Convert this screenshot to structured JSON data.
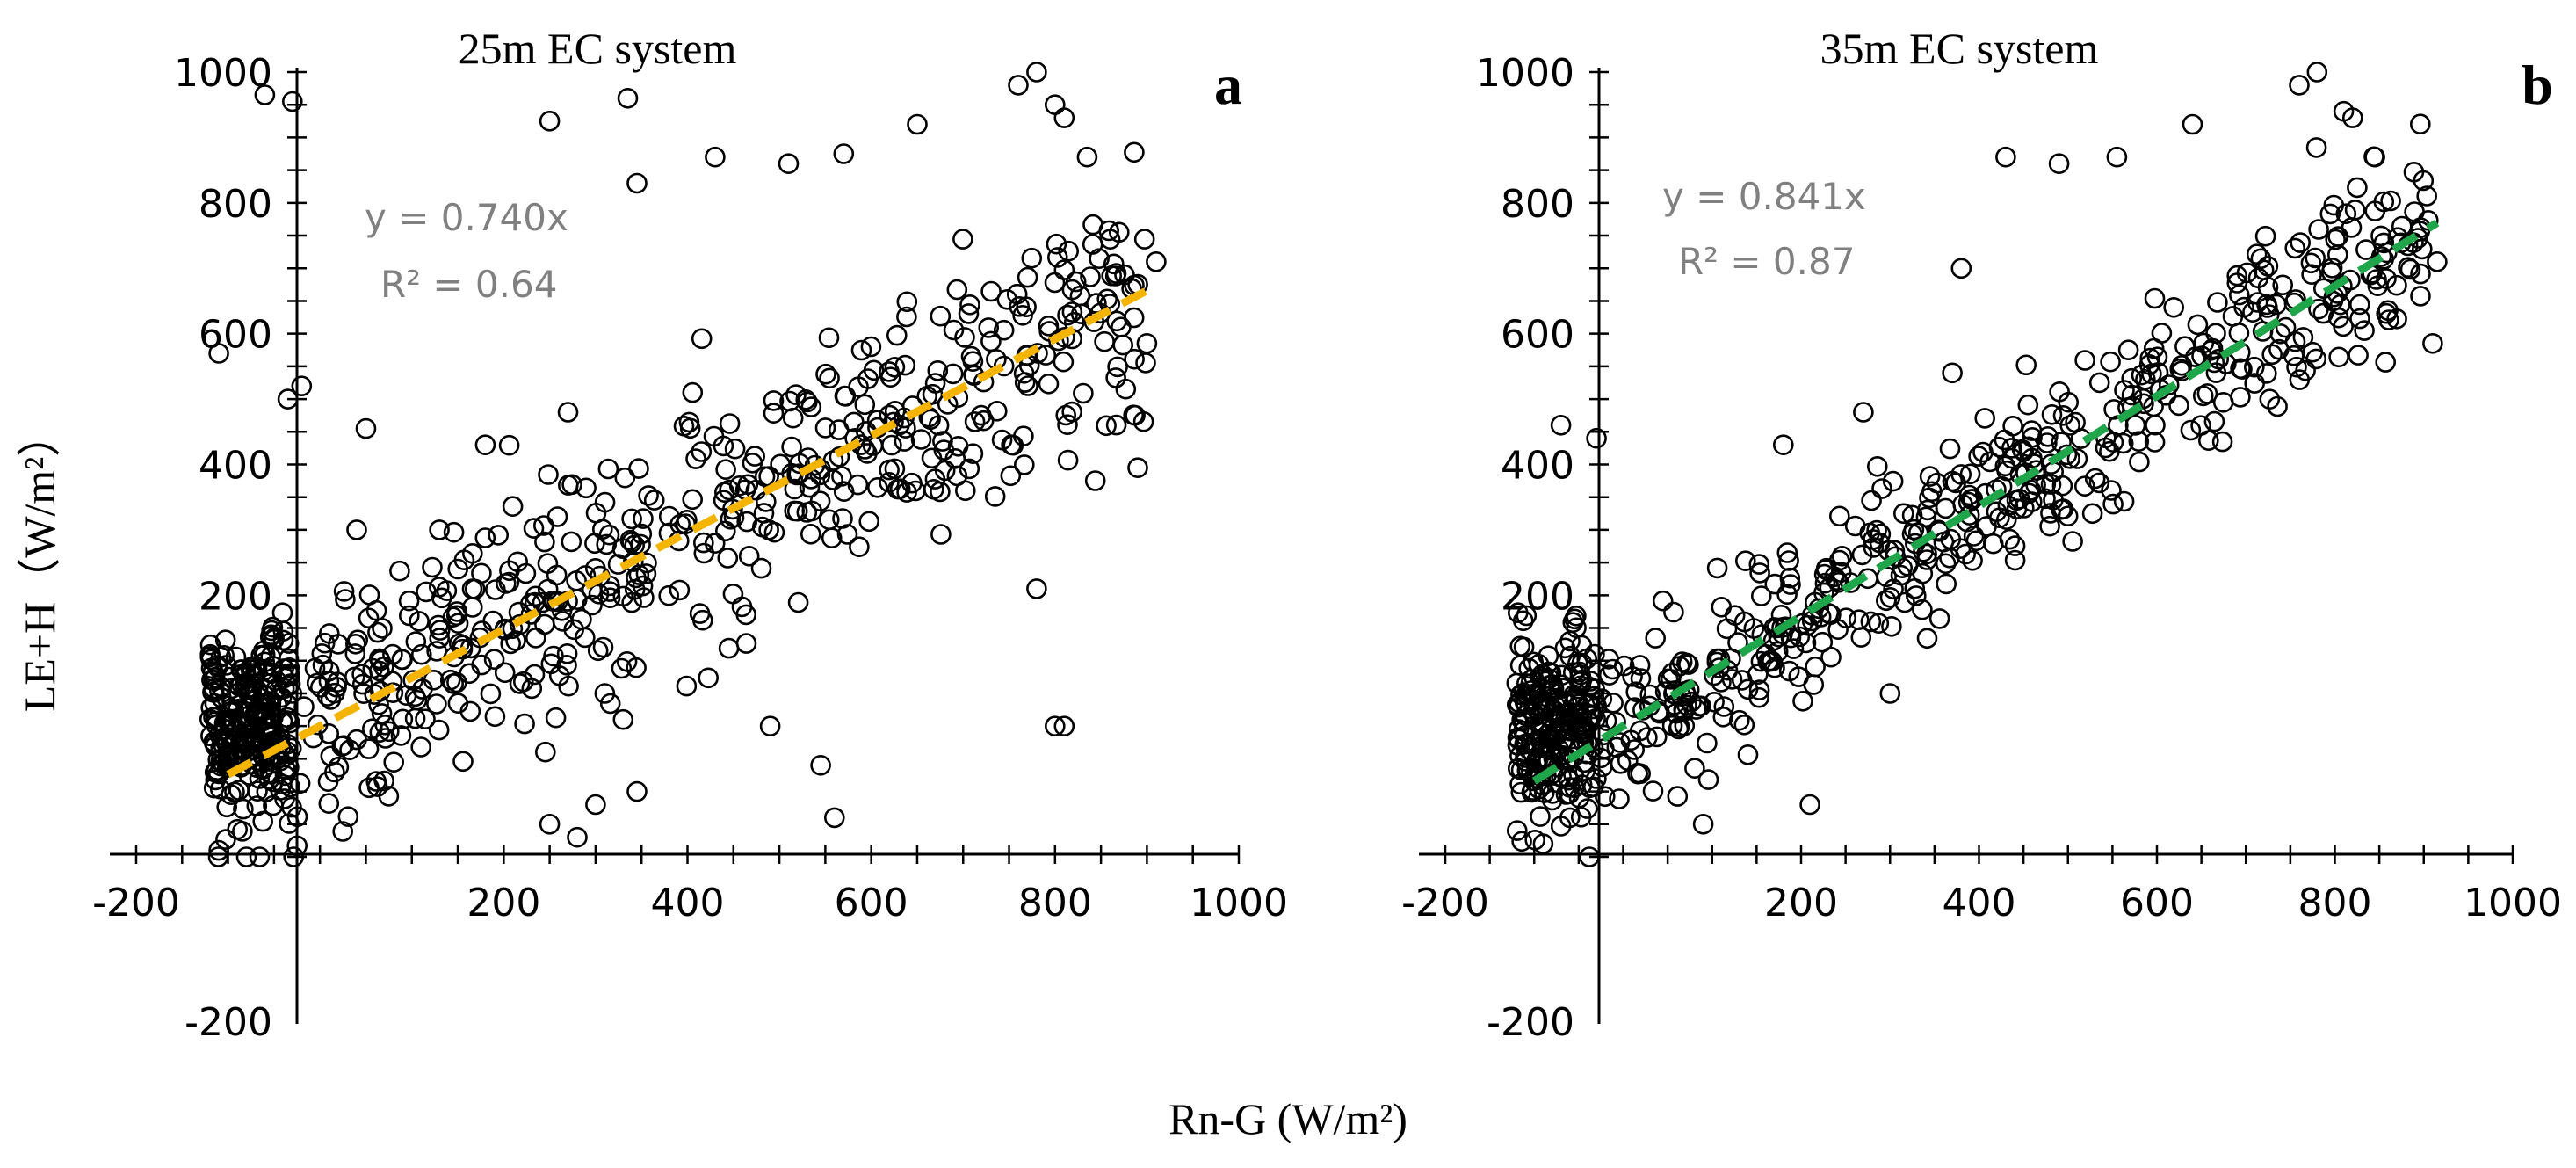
{
  "figure": {
    "ylabel": "LE+H（W/m²）",
    "xlabel": "Rn-G (W/m²)"
  },
  "chart_data": [
    {
      "type": "scatter",
      "panel": "a",
      "title": "25m  EC system",
      "xlabel": "Rn-G (W/m²)",
      "ylabel": "LE+H（W/m²）",
      "xlim": [
        -200,
        1000
      ],
      "ylim": [
        -200,
        1000
      ],
      "xticks": [
        -200,
        200,
        400,
        600,
        800,
        1000
      ],
      "xtick_labels": [
        "-200",
        "200",
        "400",
        "600",
        "800",
        "1000"
      ],
      "yticks": [
        -200,
        200,
        400,
        600,
        800,
        1000
      ],
      "ytick_labels": [
        "-200",
        "200",
        "400",
        "600",
        "800",
        "1000"
      ],
      "grid": false,
      "marker_color": "#000000",
      "fit": {
        "equation": "y = 0.740x",
        "r2": "R² = 0.64",
        "slope": 0.74,
        "x_range": [
          -100,
          910
        ],
        "color": "#F5B400",
        "style": "dashed"
      },
      "outliers": [
        {
          "x": -60,
          "y": 965
        },
        {
          "x": -30,
          "y": 955
        },
        {
          "x": -110,
          "y": 570
        },
        {
          "x": -20,
          "y": 520
        },
        {
          "x": -35,
          "y": 500
        },
        {
          "x": 250,
          "y": 925
        },
        {
          "x": 335,
          "y": 960
        },
        {
          "x": 345,
          "y": 830
        },
        {
          "x": 430,
          "y": 870
        },
        {
          "x": 510,
          "y": 860
        },
        {
          "x": 570,
          "y": 875
        },
        {
          "x": 650,
          "y": 920
        },
        {
          "x": 760,
          "y": 980
        },
        {
          "x": 780,
          "y": 1000
        },
        {
          "x": 800,
          "y": 950
        },
        {
          "x": 810,
          "y": 930
        },
        {
          "x": 835,
          "y": 870
        },
        {
          "x": 890,
          "y": 395
        },
        {
          "x": 900,
          "y": 585
        },
        {
          "x": 910,
          "y": 710
        },
        {
          "x": 780,
          "y": 210
        },
        {
          "x": 800,
          "y": 0
        },
        {
          "x": 810,
          "y": 0
        },
        {
          "x": 560,
          "y": -140
        },
        {
          "x": 545,
          "y": -60
        },
        {
          "x": 490,
          "y": 0
        },
        {
          "x": 280,
          "y": -170
        },
        {
          "x": 250,
          "y": -150
        },
        {
          "x": 300,
          "y": -120
        },
        {
          "x": 345,
          "y": -100
        },
        {
          "x": -80,
          "y": -200
        },
        {
          "x": -110,
          "y": -190
        },
        {
          "x": 180,
          "y": 430
        },
        {
          "x": 50,
          "y": 455
        },
        {
          "x": 130,
          "y": 300
        },
        {
          "x": 40,
          "y": 300
        },
        {
          "x": 270,
          "y": 480
        },
        {
          "x": 310,
          "y": 50
        },
        {
          "x": 330,
          "y": 10
        }
      ],
      "cloud": {
        "n": 780,
        "seed": 12345,
        "scatter_sd": 95,
        "x_range": [
          -120,
          900
        ]
      }
    },
    {
      "type": "scatter",
      "panel": "b",
      "title": "35m EC system",
      "xlabel": "Rn-G (W/m²)",
      "ylabel": "LE+H（W/m²）",
      "xlim": [
        -200,
        1000
      ],
      "ylim": [
        -200,
        1000
      ],
      "xticks": [
        -200,
        200,
        400,
        600,
        800,
        1000
      ],
      "xtick_labels": [
        "-200",
        "200",
        "400",
        "600",
        "800",
        "1000"
      ],
      "yticks": [
        -200,
        200,
        400,
        600,
        800,
        1000
      ],
      "ytick_labels": [
        "-200",
        "200",
        "400",
        "600",
        "800",
        "1000"
      ],
      "grid": false,
      "marker_color": "#000000",
      "fit": {
        "equation": "y = 0.841x",
        "r2": "R² = 0.87",
        "slope": 0.841,
        "x_range": [
          -100,
          915
        ],
        "color": "#1FA54A",
        "style": "dashed"
      },
      "outliers": [
        {
          "x": 760,
          "y": 980
        },
        {
          "x": 780,
          "y": 1000
        },
        {
          "x": 810,
          "y": 940
        },
        {
          "x": 820,
          "y": 930
        },
        {
          "x": 845,
          "y": 870
        },
        {
          "x": 640,
          "y": 920
        },
        {
          "x": 430,
          "y": 870
        },
        {
          "x": 490,
          "y": 860
        },
        {
          "x": 555,
          "y": 870
        },
        {
          "x": 910,
          "y": 585
        },
        {
          "x": 915,
          "y": 710
        },
        {
          "x": -70,
          "y": 460
        },
        {
          "x": -30,
          "y": 440
        },
        {
          "x": 180,
          "y": 430
        },
        {
          "x": 270,
          "y": 480
        },
        {
          "x": 380,
          "y": 700
        },
        {
          "x": 370,
          "y": 540
        },
        {
          "x": 210,
          "y": -120
        },
        {
          "x": 90,
          "y": -150
        },
        {
          "x": -90,
          "y": -180
        },
        {
          "x": -60,
          "y": -140
        },
        {
          "x": 300,
          "y": 50
        }
      ],
      "cloud": {
        "n": 720,
        "seed": 67890,
        "scatter_sd": 65,
        "x_range": [
          -120,
          905
        ]
      }
    }
  ]
}
